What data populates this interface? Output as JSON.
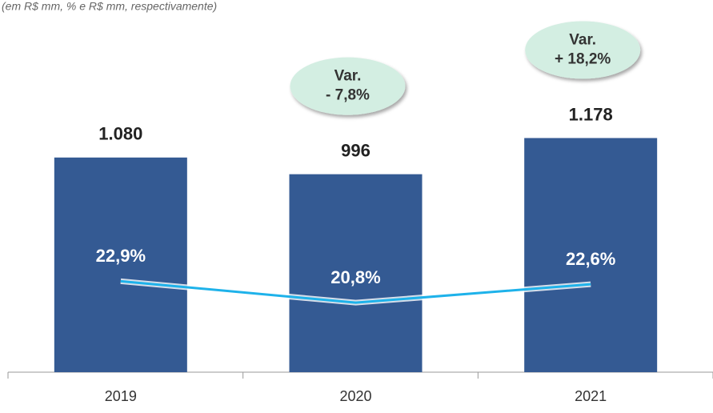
{
  "chart_data": {
    "type": "bar",
    "subtitle": "(em R$ mm, % e R$ mm, respectivamente)",
    "categories": [
      "2019",
      "2020",
      "2021"
    ],
    "series": [
      {
        "type": "bar",
        "color": "#345a93",
        "values": [
          1080,
          996,
          1178
        ],
        "value_labels": [
          "1.080",
          "996",
          "1.178"
        ]
      },
      {
        "type": "line",
        "axis": "y2",
        "color": "#1eb2ea",
        "values": [
          22.9,
          20.8,
          22.6
        ],
        "value_labels": [
          "22,9%",
          "20,8%",
          "22,6%"
        ]
      }
    ],
    "annotations": [
      {
        "category": "2020",
        "lines": [
          "Var.",
          "- 7,8%"
        ]
      },
      {
        "category": "2021",
        "lines": [
          "Var.",
          "+ 18,2%"
        ]
      }
    ],
    "ylim": [
      0,
      1800
    ],
    "y2lim": [
      14,
      49
    ]
  }
}
